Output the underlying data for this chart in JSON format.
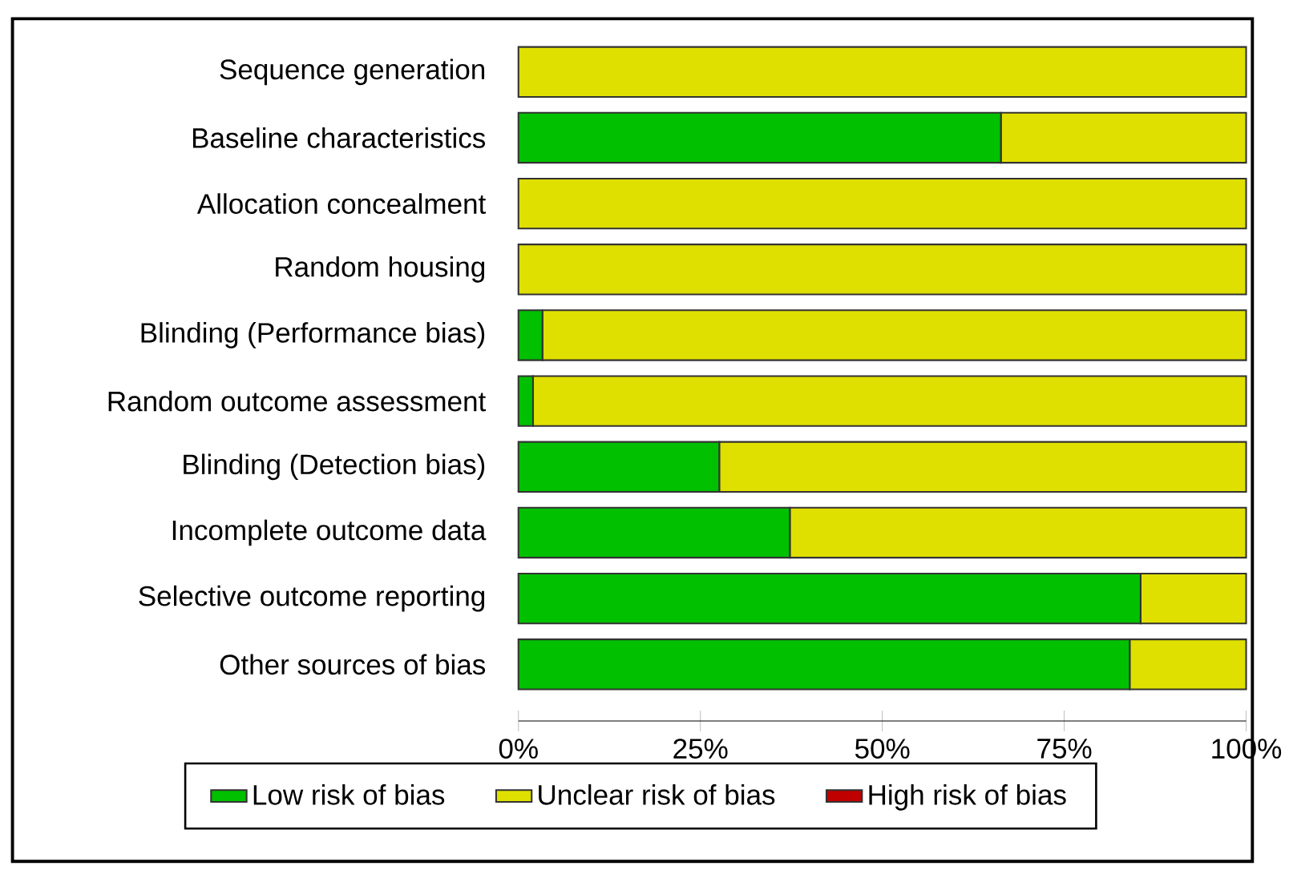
{
  "chart_data": {
    "type": "bar",
    "orientation": "horizontal",
    "stacked": true,
    "categories": [
      "Sequence generation",
      "Baseline characteristics",
      "Allocation concealment",
      "Random housing",
      "Blinding (Performance bias)",
      "Random outcome assessment",
      "Blinding (Detection bias)",
      "Incomplete outcome data",
      "Selective outcome reporting",
      "Other sources of bias"
    ],
    "series": [
      {
        "name": "Low risk of bias",
        "color": "#00c000",
        "values": [
          0,
          66.3,
          0,
          0,
          3.3,
          2,
          27.6,
          37.3,
          85.5,
          84
        ]
      },
      {
        "name": "Unclear risk of bias",
        "color": "#e0e000",
        "values": [
          100,
          33.7,
          100,
          100,
          96.7,
          98,
          72.4,
          62.7,
          14.5,
          16
        ]
      },
      {
        "name": "High risk of bias",
        "color": "#c00000",
        "values": [
          0,
          0,
          0,
          0,
          0,
          0,
          0,
          0,
          0,
          0
        ]
      }
    ],
    "xlim": [
      0,
      100
    ],
    "xticks": [
      {
        "value": 0,
        "label": "0%"
      },
      {
        "value": 25,
        "label": "25%"
      },
      {
        "value": 50,
        "label": "50%"
      },
      {
        "value": 75,
        "label": "75%"
      },
      {
        "value": 100,
        "label": "100%"
      }
    ],
    "legend": "bottom"
  }
}
